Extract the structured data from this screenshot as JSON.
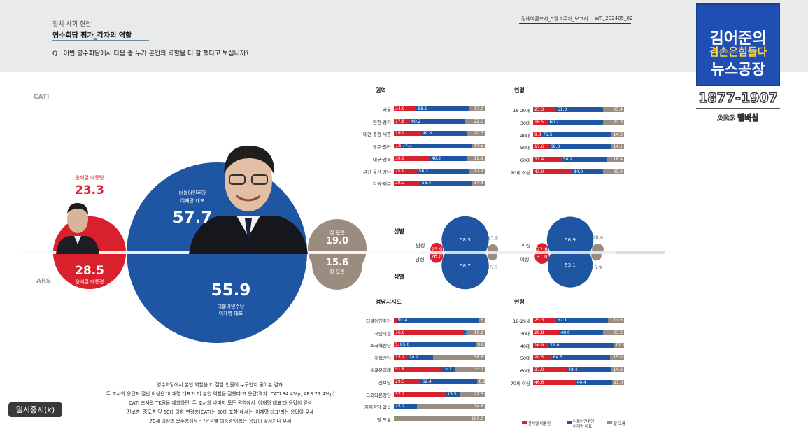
{
  "header": {
    "section": "정치 사회 현안",
    "headline": "영수회담 평가_각자의 역할",
    "question": "Q . 이번 영수회담에서 다음 중 누가 본인의 역할을 더 잘 했다고 보십니까?",
    "report_meta": "정례여론조사_5월 2주차_보고서",
    "report_code": "WR_202405_02"
  },
  "logo": {
    "line1": "김어준의",
    "line2": "겸손은힘들다",
    "line3": "뉴스공장",
    "years": "1877-1907",
    "ars": "ARS 멤버십"
  },
  "overlay": {
    "pause_button": "일시중지(k)"
  },
  "modes": {
    "cati": "CATI",
    "ars": "ARS"
  },
  "colors": {
    "yoon": "#d9212e",
    "lee": "#1f56a3",
    "unsure": "#9b8c80"
  },
  "icons": {
    "yoon_photo": "yoon-portrait-icon",
    "lee_photo": "lee-portrait-icon"
  },
  "bubbles": {
    "cati": {
      "yoon": {
        "label": "윤석열 대통령",
        "value": "23.3"
      },
      "lee": {
        "label1": "더불어민주당",
        "label2": "이재명 대표",
        "value": "57.7"
      },
      "unsure": {
        "label": "잘 모름",
        "value": "19.0"
      }
    },
    "ars": {
      "yoon": {
        "label": "윤석열 대통령",
        "value": "28.5"
      },
      "lee": {
        "label1": "더불어민주당",
        "label2": "이재명 대표",
        "value": "55.9"
      },
      "unsure": {
        "label": "잘 모름",
        "value": "15.6"
      }
    }
  },
  "note": {
    "lines": [
      "영수회담에서 본인 역할을 더 잘한 인물이 누구인지 물어본 결과,",
      "두 조사의 응답자 절반 이상은 '이재명 대표가 더 본인 역할을 잘했다'고 응답(격차: CATI 34.4%p, ARS 27.4%p)",
      "CATI 조사의 TK권을 제외하면, 두 조사의 나머지 모든 권역에서 '이재명 대표'라 응답이 앞섬",
      "진보층, 중도층 및 50대 이하 연령층(CATI는 60대 포함)에서는 '이재명 대표'라는 응답이 우세",
      "70세 이상과 보수층에서는 '윤석열 대통령'이라는 응답이 앞서거나 우세"
    ]
  },
  "legend": {
    "yoon": "윤석열 대통령",
    "lee1": "더불어민주당",
    "lee2": "이재명 대표",
    "unsure": "잘 모름"
  },
  "chart_data": [
    {
      "type": "bar",
      "title": "권역",
      "stacked": true,
      "series_order": [
        "윤석열 대통령",
        "이재명 대표",
        "잘 모름"
      ],
      "categories": [
        "서울",
        "인천·경기",
        "대전·충청·세종",
        "광주·전라",
        "대구·경북",
        "부산·울산·경남",
        "강원·제주"
      ],
      "series": [
        {
          "name": "윤석열 대통령",
          "values": [
            24.9,
            17.8,
            29.9,
            7.8,
            39.9,
            25.9,
            29.2
          ]
        },
        {
          "name": "이재명 대표",
          "values": [
            58.1,
            60.2,
            49.8,
            77.7,
            40.2,
            56.2,
            56.4
          ]
        },
        {
          "name": "잘 모름",
          "values": [
            17.0,
            22.0,
            20.3,
            14.5,
            19.9,
            17.9,
            14.4
          ]
        }
      ]
    },
    {
      "type": "bar",
      "title": "연령",
      "stacked": true,
      "mode": "CATI",
      "categories": [
        "18-29세",
        "30대",
        "40대",
        "50대",
        "60대",
        "70세 이상"
      ],
      "series": [
        {
          "name": "윤석열 대통령",
          "values": [
            25.3,
            16.5,
            9.3,
            17.6,
            31.4,
            43.0
          ]
        },
        {
          "name": "이재명 대표",
          "values": [
            51.3,
            60.2,
            76.5,
            68.3,
            50.2,
            34.0
          ]
        },
        {
          "name": "잘 모름",
          "values": [
            23.4,
            23.3,
            14.3,
            14.1,
            18.4,
            23.0
          ]
        }
      ]
    },
    {
      "type": "bubble",
      "title": "성별",
      "groups": [
        {
          "name": "남성",
          "mode": "CATI",
          "yoon": 23.9,
          "lee": 58.5,
          "unsure": 17.5
        },
        {
          "name": "남성",
          "mode": "ARS",
          "yoon": 26.0,
          "lee": 58.7,
          "unsure": 15.3
        },
        {
          "name": "여성",
          "mode": "CATI",
          "yoon": 22.6,
          "lee": 56.9,
          "unsure": 20.4
        },
        {
          "name": "여성",
          "mode": "ARS",
          "yoon": 31.0,
          "lee": 53.1,
          "unsure": 15.9
        }
      ]
    },
    {
      "type": "bar",
      "title": "정당지지도",
      "stacked": true,
      "categories": [
        "더불어민주당",
        "국민의힘",
        "조국혁신당",
        "개혁신당",
        "새로운미래",
        "진보당",
        "그외다른정당",
        "지지정당 없음",
        "잘 모름"
      ],
      "series": [
        {
          "name": "윤석열 대통령",
          "values": [
            2.3,
            76.6,
            5.3,
            15.2,
            51.8,
            29.5,
            57.2,
            0.0,
            0.0
          ]
        },
        {
          "name": "이재명 대표",
          "values": [
            91.4,
            3.6,
            85.0,
            28.2,
            15.1,
            62.4,
            15.5,
            25.2,
            0.0
          ]
        },
        {
          "name": "잘 모름",
          "values": [
            6.3,
            19.8,
            9.8,
            56.6,
            33.1,
            8.1,
            27.3,
            74.8,
            100.0
          ]
        }
      ]
    },
    {
      "type": "bar",
      "title": "연령",
      "stacked": true,
      "mode": "ARS",
      "categories": [
        "18-29세",
        "30대",
        "40대",
        "50대",
        "60대",
        "70세 이상"
      ],
      "series": [
        {
          "name": "윤석열 대통령",
          "values": [
            25.3,
            28.8,
            16.9,
            20.5,
            37.0,
            46.6
          ]
        },
        {
          "name": "이재명 대표",
          "values": [
            57.1,
            48.0,
            72.0,
            64.5,
            48.4,
            40.4
          ]
        },
        {
          "name": "잘 모름",
          "values": [
            17.6,
            23.2,
            11.1,
            15.0,
            14.6,
            13.0
          ]
        }
      ]
    }
  ]
}
